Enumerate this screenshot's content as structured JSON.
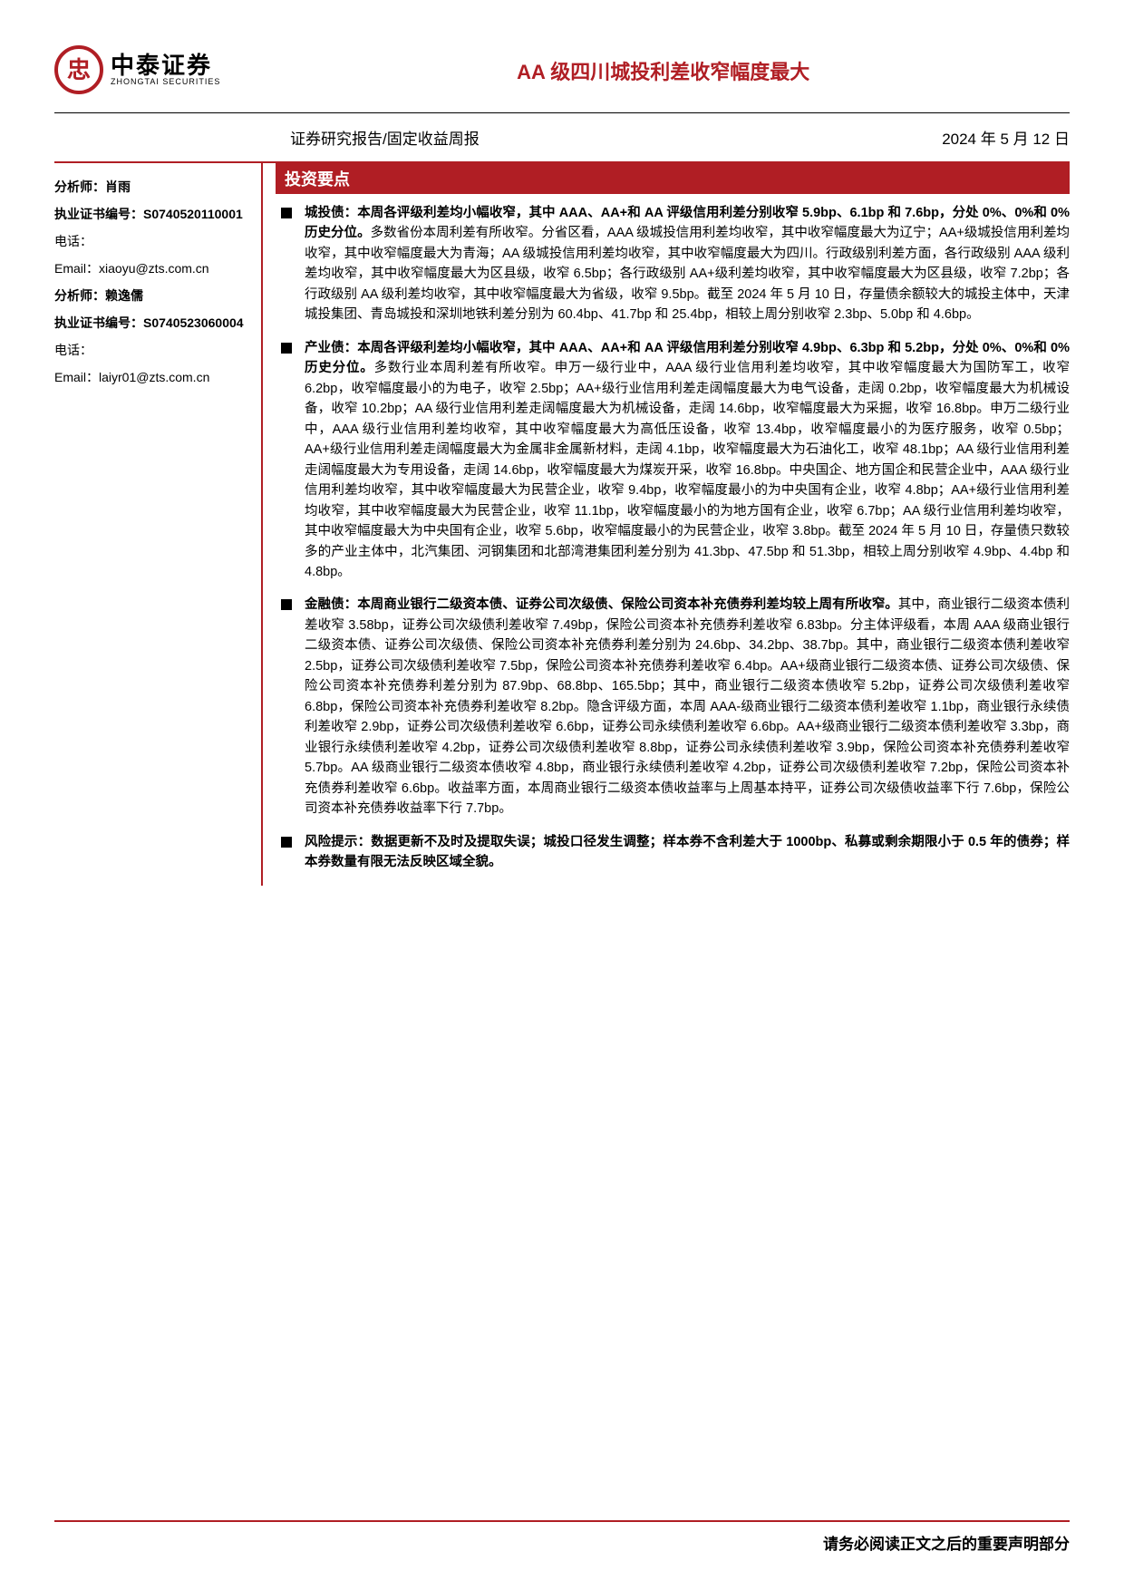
{
  "brand": {
    "cn": "中泰证券",
    "en": "ZHONGTAI SECURITIES",
    "glyph": "忠"
  },
  "colors": {
    "accent": "#b01e24",
    "text": "#000000",
    "bg": "#ffffff"
  },
  "title": "AA 级四川城投利差收窄幅度最大",
  "subheader": {
    "category": "证券研究报告/固定收益周报",
    "date": "2024 年 5 月 12 日"
  },
  "sidebar": {
    "rows": [
      {
        "bold": true,
        "text": "分析师：肖雨"
      },
      {
        "bold": true,
        "text": "执业证书编号：S0740520110001"
      },
      {
        "bold": false,
        "text": "电话："
      },
      {
        "bold": false,
        "text": "Email：xiaoyu@zts.com.cn"
      },
      {
        "bold": true,
        "text": "分析师：赖逸儒"
      },
      {
        "bold": true,
        "text": "执业证书编号：S0740523060004"
      },
      {
        "bold": false,
        "text": "电话："
      },
      {
        "bold": false,
        "text": "Email：laiyr01@zts.com.cn"
      }
    ]
  },
  "section_title": "投资要点",
  "bullets": [
    {
      "lead": "城投债：本周各评级利差均小幅收窄，其中 AAA、AA+和 AA 评级信用利差分别收窄 5.9bp、6.1bp 和 7.6bp，分处 0%、0%和 0%历史分位。",
      "body": "多数省份本周利差有所收窄。分省区看，AAA 级城投信用利差均收窄，其中收窄幅度最大为辽宁；AA+级城投信用利差均收窄，其中收窄幅度最大为青海；AA 级城投信用利差均收窄，其中收窄幅度最大为四川。行政级别利差方面，各行政级别 AAA 级利差均收窄，其中收窄幅度最大为区县级，收窄 6.5bp；各行政级别 AA+级利差均收窄，其中收窄幅度最大为区县级，收窄 7.2bp；各行政级别 AA 级利差均收窄，其中收窄幅度最大为省级，收窄 9.5bp。截至 2024 年 5 月 10 日，存量债余额较大的城投主体中，天津城投集团、青岛城投和深圳地铁利差分别为 60.4bp、41.7bp 和 25.4bp，相较上周分别收窄 2.3bp、5.0bp 和 4.6bp。"
    },
    {
      "lead": "产业债：本周各评级利差均小幅收窄，其中 AAA、AA+和 AA 评级信用利差分别收窄 4.9bp、6.3bp 和 5.2bp，分处 0%、0%和 0%历史分位。",
      "body": "多数行业本周利差有所收窄。申万一级行业中，AAA 级行业信用利差均收窄，其中收窄幅度最大为国防军工，收窄 6.2bp，收窄幅度最小的为电子，收窄 2.5bp；AA+级行业信用利差走阔幅度最大为电气设备，走阔 0.2bp，收窄幅度最大为机械设备，收窄 10.2bp；AA 级行业信用利差走阔幅度最大为机械设备，走阔 14.6bp，收窄幅度最大为采掘，收窄 16.8bp。申万二级行业中，AAA 级行业信用利差均收窄，其中收窄幅度最大为高低压设备，收窄 13.4bp，收窄幅度最小的为医疗服务，收窄 0.5bp；AA+级行业信用利差走阔幅度最大为金属非金属新材料，走阔 4.1bp，收窄幅度最大为石油化工，收窄 48.1bp；AA 级行业信用利差走阔幅度最大为专用设备，走阔 14.6bp，收窄幅度最大为煤炭开采，收窄 16.8bp。中央国企、地方国企和民营企业中，AAA 级行业信用利差均收窄，其中收窄幅度最大为民营企业，收窄 9.4bp，收窄幅度最小的为中央国有企业，收窄 4.8bp；AA+级行业信用利差均收窄，其中收窄幅度最大为民营企业，收窄 11.1bp，收窄幅度最小的为地方国有企业，收窄 6.7bp；AA 级行业信用利差均收窄，其中收窄幅度最大为中央国有企业，收窄 5.6bp，收窄幅度最小的为民营企业，收窄 3.8bp。截至 2024 年 5 月 10 日，存量债只数较多的产业主体中，北汽集团、河钢集团和北部湾港集团利差分别为 41.3bp、47.5bp 和 51.3bp，相较上周分别收窄 4.9bp、4.4bp 和 4.8bp。"
    },
    {
      "lead": "金融债：本周商业银行二级资本债、证券公司次级债、保险公司资本补充债券利差均较上周有所收窄。",
      "body": "其中，商业银行二级资本债利差收窄 3.58bp，证券公司次级债利差收窄 7.49bp，保险公司资本补充债券利差收窄 6.83bp。分主体评级看，本周 AAA 级商业银行二级资本债、证券公司次级债、保险公司资本补充债券利差分别为 24.6bp、34.2bp、38.7bp。其中，商业银行二级资本债利差收窄 2.5bp，证券公司次级债利差收窄 7.5bp，保险公司资本补充债券利差收窄 6.4bp。AA+级商业银行二级资本债、证券公司次级债、保险公司资本补充债券利差分别为 87.9bp、68.8bp、165.5bp；其中，商业银行二级资本债收窄 5.2bp，证券公司次级债利差收窄 6.8bp，保险公司资本补充债券利差收窄 8.2bp。隐含评级方面，本周 AAA-级商业银行二级资本债利差收窄 1.1bp，商业银行永续债利差收窄 2.9bp，证券公司次级债利差收窄 6.6bp，证券公司永续债利差收窄 6.6bp。AA+级商业银行二级资本债利差收窄 3.3bp，商业银行永续债利差收窄 4.2bp，证券公司次级债利差收窄 8.8bp，证券公司永续债利差收窄 3.9bp，保险公司资本补充债券利差收窄 5.7bp。AA 级商业银行二级资本债收窄 4.8bp，商业银行永续债利差收窄 4.2bp，证券公司次级债利差收窄 7.2bp，保险公司资本补充债券利差收窄 6.6bp。收益率方面，本周商业银行二级资本债收益率与上周基本持平，证券公司次级债收益率下行 7.6bp，保险公司资本补充债券收益率下行 7.7bp。"
    },
    {
      "lead": "风险提示：数据更新不及时及提取失误；城投口径发生调整；样本券不含利差大于 1000bp、私募或剩余期限小于 0.5 年的债券；样本券数量有限无法反映区域全貌。",
      "body": ""
    }
  ],
  "footer": "请务必阅读正文之后的重要声明部分"
}
